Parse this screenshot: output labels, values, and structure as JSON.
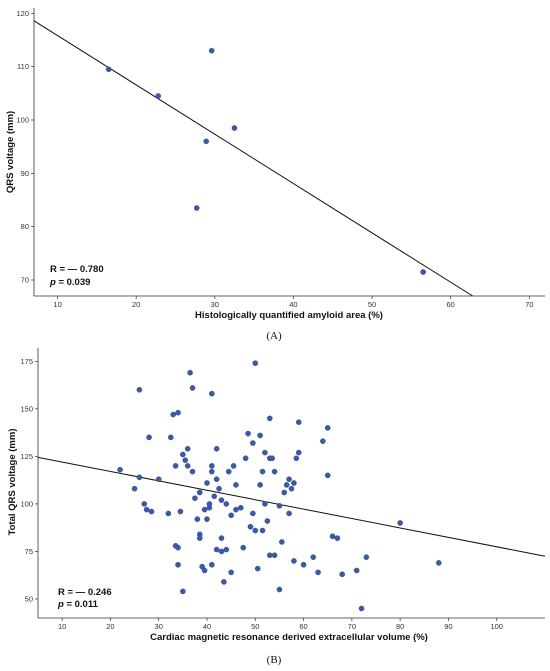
{
  "chart_data": [
    {
      "type": "scatter",
      "panel_label": "(A)",
      "xlabel": "Histologically quantified amyloid area (%)",
      "ylabel": "QRS voltage (mm)",
      "xlim": [
        7,
        72
      ],
      "ylim": [
        67,
        121
      ],
      "xticks": [
        10,
        20,
        30,
        40,
        50,
        60,
        70
      ],
      "yticks": [
        70,
        80,
        90,
        100,
        110,
        120
      ],
      "grid": false,
      "point_color": "#3a5aa8",
      "points": [
        {
          "x": 16.5,
          "y": 109.5
        },
        {
          "x": 22.8,
          "y": 104.5
        },
        {
          "x": 27.7,
          "y": 83.5
        },
        {
          "x": 28.9,
          "y": 96.0
        },
        {
          "x": 29.6,
          "y": 113.0
        },
        {
          "x": 32.5,
          "y": 98.5
        },
        {
          "x": 56.5,
          "y": 71.5
        }
      ],
      "fit_line": {
        "x": [
          7,
          62.8
        ],
        "y": [
          118.6,
          67.0
        ]
      },
      "stats": {
        "r": "R = — 0.780",
        "p_label": "p",
        "p_value": " = 0.039"
      }
    },
    {
      "type": "scatter",
      "panel_label": "(B)",
      "xlabel": "Cardiac magnetic resonance derived extracellular volume (%)",
      "ylabel": "Total QRS voltage (mm)",
      "xlim": [
        5,
        110
      ],
      "ylim": [
        40,
        182
      ],
      "xticks": [
        10,
        20,
        30,
        40,
        50,
        60,
        70,
        80,
        90,
        100
      ],
      "yticks": [
        50,
        75,
        100,
        125,
        150,
        175
      ],
      "grid": false,
      "point_color": "#3a5aa8",
      "points": [
        {
          "x": 22,
          "y": 118
        },
        {
          "x": 25,
          "y": 108
        },
        {
          "x": 26,
          "y": 160
        },
        {
          "x": 26,
          "y": 114
        },
        {
          "x": 27,
          "y": 100
        },
        {
          "x": 27.5,
          "y": 97
        },
        {
          "x": 28,
          "y": 135
        },
        {
          "x": 28.5,
          "y": 96
        },
        {
          "x": 30,
          "y": 113
        },
        {
          "x": 32,
          "y": 95
        },
        {
          "x": 32.5,
          "y": 135
        },
        {
          "x": 33,
          "y": 147
        },
        {
          "x": 33.5,
          "y": 120
        },
        {
          "x": 33.5,
          "y": 78
        },
        {
          "x": 34,
          "y": 148
        },
        {
          "x": 34,
          "y": 77
        },
        {
          "x": 34,
          "y": 68
        },
        {
          "x": 34.5,
          "y": 96
        },
        {
          "x": 35,
          "y": 126
        },
        {
          "x": 35,
          "y": 54
        },
        {
          "x": 35.5,
          "y": 123
        },
        {
          "x": 36,
          "y": 129
        },
        {
          "x": 36,
          "y": 120
        },
        {
          "x": 36.5,
          "y": 169
        },
        {
          "x": 37,
          "y": 161
        },
        {
          "x": 37,
          "y": 117
        },
        {
          "x": 37.5,
          "y": 103
        },
        {
          "x": 38,
          "y": 92
        },
        {
          "x": 38.5,
          "y": 106
        },
        {
          "x": 38.5,
          "y": 84
        },
        {
          "x": 38.5,
          "y": 82
        },
        {
          "x": 39,
          "y": 67
        },
        {
          "x": 39.5,
          "y": 97
        },
        {
          "x": 39.5,
          "y": 65
        },
        {
          "x": 40,
          "y": 92
        },
        {
          "x": 40,
          "y": 111
        },
        {
          "x": 40.5,
          "y": 98
        },
        {
          "x": 40.5,
          "y": 100
        },
        {
          "x": 41,
          "y": 158
        },
        {
          "x": 41,
          "y": 120
        },
        {
          "x": 41,
          "y": 117
        },
        {
          "x": 41,
          "y": 68
        },
        {
          "x": 41.5,
          "y": 104
        },
        {
          "x": 42,
          "y": 129
        },
        {
          "x": 42,
          "y": 113
        },
        {
          "x": 42,
          "y": 76
        },
        {
          "x": 42.5,
          "y": 108
        },
        {
          "x": 43,
          "y": 102
        },
        {
          "x": 43,
          "y": 82
        },
        {
          "x": 43,
          "y": 75
        },
        {
          "x": 43.5,
          "y": 59
        },
        {
          "x": 44,
          "y": 100
        },
        {
          "x": 44,
          "y": 76
        },
        {
          "x": 44.5,
          "y": 117
        },
        {
          "x": 45,
          "y": 64
        },
        {
          "x": 45,
          "y": 94
        },
        {
          "x": 45.5,
          "y": 120
        },
        {
          "x": 46,
          "y": 110
        },
        {
          "x": 46,
          "y": 97
        },
        {
          "x": 47,
          "y": 98
        },
        {
          "x": 47.5,
          "y": 77
        },
        {
          "x": 48,
          "y": 124
        },
        {
          "x": 48.5,
          "y": 137
        },
        {
          "x": 49,
          "y": 88
        },
        {
          "x": 49.5,
          "y": 95
        },
        {
          "x": 49.5,
          "y": 132
        },
        {
          "x": 50,
          "y": 174
        },
        {
          "x": 50,
          "y": 86
        },
        {
          "x": 50.5,
          "y": 66
        },
        {
          "x": 51,
          "y": 110
        },
        {
          "x": 51,
          "y": 136
        },
        {
          "x": 51.5,
          "y": 86
        },
        {
          "x": 51.5,
          "y": 117
        },
        {
          "x": 52,
          "y": 127
        },
        {
          "x": 52,
          "y": 100
        },
        {
          "x": 52.5,
          "y": 91
        },
        {
          "x": 53,
          "y": 145
        },
        {
          "x": 53,
          "y": 73
        },
        {
          "x": 53,
          "y": 124
        },
        {
          "x": 53.5,
          "y": 124
        },
        {
          "x": 54,
          "y": 117
        },
        {
          "x": 54,
          "y": 73
        },
        {
          "x": 55,
          "y": 55
        },
        {
          "x": 55,
          "y": 99
        },
        {
          "x": 55.5,
          "y": 80
        },
        {
          "x": 56,
          "y": 106
        },
        {
          "x": 56.5,
          "y": 110
        },
        {
          "x": 57,
          "y": 113
        },
        {
          "x": 57,
          "y": 95
        },
        {
          "x": 57.5,
          "y": 108
        },
        {
          "x": 58,
          "y": 111
        },
        {
          "x": 58,
          "y": 70
        },
        {
          "x": 58.5,
          "y": 124
        },
        {
          "x": 59,
          "y": 127
        },
        {
          "x": 59,
          "y": 143
        },
        {
          "x": 60,
          "y": 68
        },
        {
          "x": 62,
          "y": 72
        },
        {
          "x": 63,
          "y": 64
        },
        {
          "x": 64,
          "y": 133
        },
        {
          "x": 65,
          "y": 115
        },
        {
          "x": 65,
          "y": 140
        },
        {
          "x": 66,
          "y": 83
        },
        {
          "x": 67,
          "y": 82
        },
        {
          "x": 68,
          "y": 63
        },
        {
          "x": 71,
          "y": 65
        },
        {
          "x": 72,
          "y": 45
        },
        {
          "x": 73,
          "y": 72
        },
        {
          "x": 80,
          "y": 90
        },
        {
          "x": 88,
          "y": 69
        }
      ],
      "fit_line": {
        "x": [
          5,
          110
        ],
        "y": [
          124.5,
          72.5
        ]
      },
      "stats": {
        "r": "R = — 0.246",
        "p_label": "p",
        "p_value": " = 0.011"
      }
    }
  ]
}
